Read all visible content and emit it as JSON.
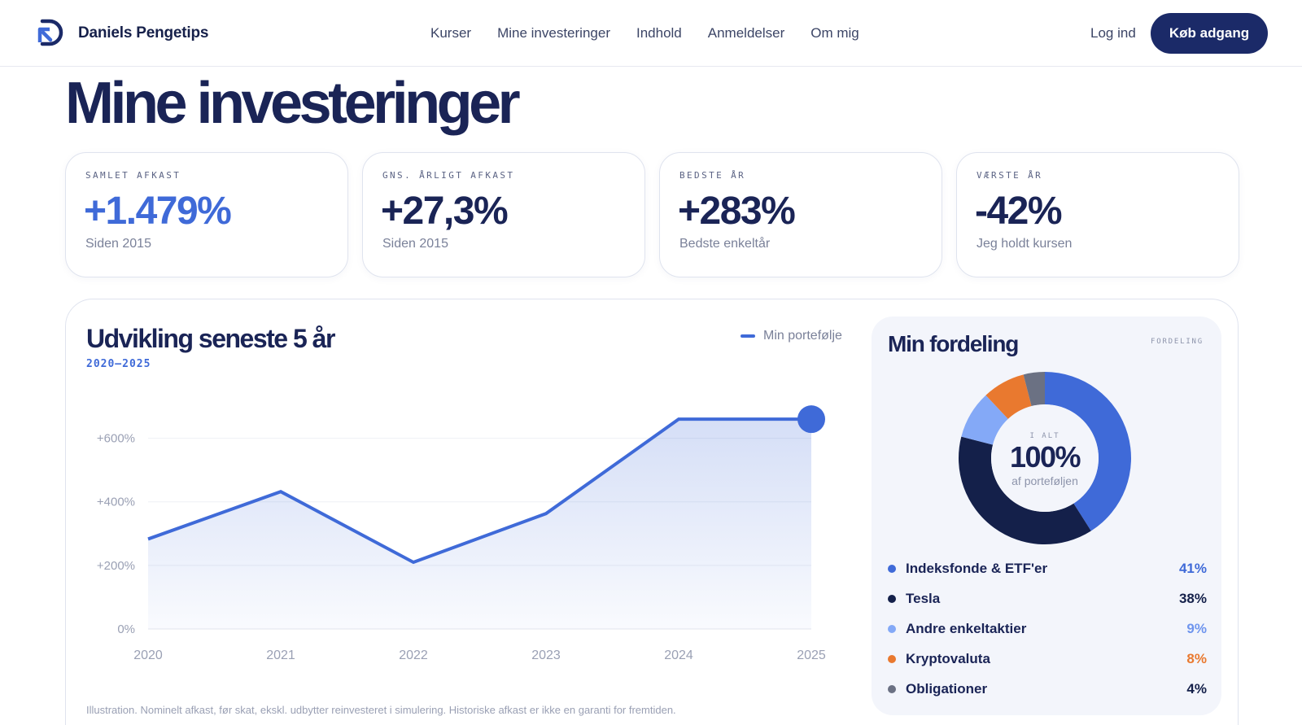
{
  "nav": {
    "brand": "Daniels Pengetips",
    "links": [
      "Kurser",
      "Mine investeringer",
      "Indhold",
      "Anmeldelser",
      "Om mig"
    ],
    "login": "Log ind",
    "cta": "Køb adgang"
  },
  "page_title": "Mine investeringer",
  "stats": [
    {
      "label": "SAMLET AFKAST",
      "value": "+1.479%",
      "sub": "Siden 2015"
    },
    {
      "label": "GNS. ÅRLIGT AFKAST",
      "value": "+27,3%",
      "sub": "Siden 2015"
    },
    {
      "label": "BEDSTE ÅR",
      "value": "+283%",
      "sub": "Bedste enkeltår"
    },
    {
      "label": "VÆRSTE ÅR",
      "value": "-42%",
      "sub": "Jeg holdt kursen"
    }
  ],
  "chart": {
    "title": "Udvikling seneste 5 år",
    "range": "2020–2025",
    "legend": "Min portefølje",
    "note": "Illustration. Nominelt afkast, før skat, ekskl. udbytter reinvesteret i simulering. Historiske afkast er ikke en garanti for fremtiden."
  },
  "chart_data": {
    "type": "area",
    "x": [
      "2020",
      "2021",
      "2022",
      "2023",
      "2024",
      "2025"
    ],
    "series": [
      {
        "name": "Min portefølje",
        "values": [
          283,
          432,
          210,
          363,
          660,
          660
        ]
      }
    ],
    "yticks": [
      "0%",
      "+200%",
      "+400%",
      "+600%"
    ],
    "ytick_values": [
      0,
      200,
      400,
      600
    ],
    "ylim": [
      0,
      750
    ],
    "grid": true,
    "legend_position": "top-right"
  },
  "distribution": {
    "title": "Min fordeling",
    "tag": "FORDELING",
    "center_label": "I ALT",
    "center_value": "100%",
    "center_sub": "af porteføljen",
    "items": [
      {
        "name": "Indeksfonde & ETF'er",
        "pct": "41%",
        "value": 41,
        "color": "#3f6ad8",
        "pct_color": "#3f6ad8"
      },
      {
        "name": "Tesla",
        "pct": "38%",
        "value": 38,
        "color": "#14204a",
        "pct_color": "#14204a"
      },
      {
        "name": "Andre enkeltaktier",
        "pct": "9%",
        "value": 9,
        "color": "#84a9f7",
        "pct_color": "#6f95ee"
      },
      {
        "name": "Kryptovaluta",
        "pct": "8%",
        "value": 8,
        "color": "#e9792f",
        "pct_color": "#e9792f"
      },
      {
        "name": "Obligationer",
        "pct": "4%",
        "value": 4,
        "color": "#6b7183",
        "pct_color": "#14204a"
      }
    ]
  },
  "colors": {
    "accent": "#3f6ad8",
    "navy": "#1b2a68"
  }
}
